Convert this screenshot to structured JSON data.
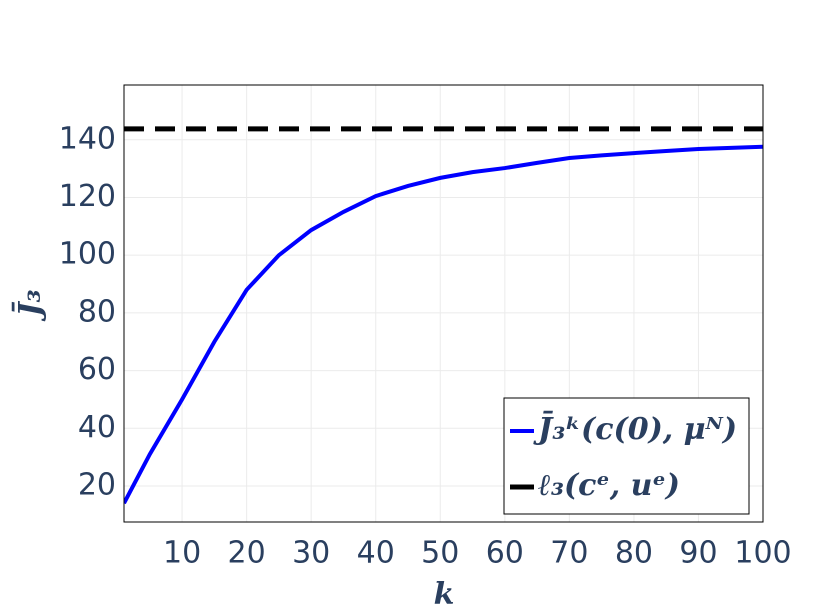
{
  "chart_data": {
    "type": "line",
    "x_label": "k",
    "y_label": "J̄₃",
    "xlim": [
      1,
      100
    ],
    "ylim": [
      7.5,
      159
    ],
    "xticks": [
      10,
      20,
      30,
      40,
      50,
      60,
      70,
      80,
      90,
      100
    ],
    "yticks": [
      20,
      40,
      60,
      80,
      100,
      120,
      140
    ],
    "grid": true,
    "legend": "lower right",
    "series": [
      {
        "name": "J̄₃ᵏ(c(0), μᴺ)",
        "color": "#0000ff",
        "dash": false,
        "x": [
          1,
          5,
          10,
          15,
          20,
          25,
          30,
          35,
          40,
          45,
          50,
          55,
          60,
          65,
          70,
          75,
          80,
          85,
          90,
          95,
          100
        ],
        "values": [
          14,
          31,
          50,
          70,
          88,
          100,
          108.7,
          115,
          120.5,
          124,
          126.8,
          128.8,
          130.2,
          132,
          133.7,
          134.6,
          135.4,
          136.1,
          136.8,
          137.2,
          137.6
        ]
      },
      {
        "name": "ℓ₃(cᵉ, uᵉ)",
        "color": "#000000",
        "dash": true,
        "x": [
          1,
          100
        ],
        "values": [
          143.8,
          143.8
        ]
      }
    ]
  }
}
